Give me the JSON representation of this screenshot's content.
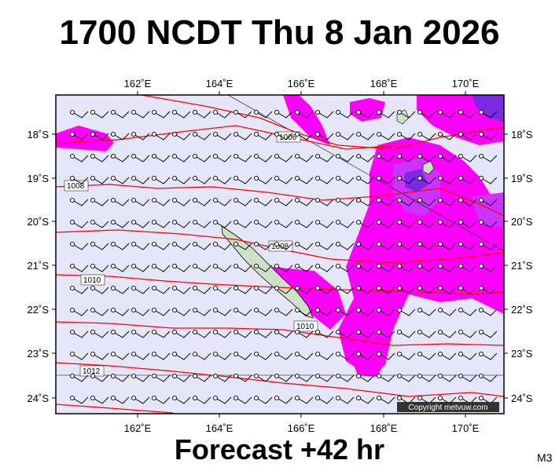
{
  "title": "1700 NCDT Thu 8 Jan 2026",
  "forecast": "Forecast +42 hr",
  "map_code": "M3",
  "copyright": "Copyright metvuw.com",
  "lon_labels": [
    "162˚E",
    "164˚E",
    "166˚E",
    "168˚E",
    "170˚E"
  ],
  "lat_labels": [
    "18˚S",
    "19˚S",
    "20˚S",
    "21˚S",
    "22˚S",
    "23˚S",
    "24˚S"
  ],
  "isobar_labels": [
    "1006",
    "1008",
    "1008",
    "1010",
    "1010",
    "1012"
  ],
  "colors": {
    "background": "#e6e6fa",
    "rain_light": "#ff00ff",
    "rain_medium": "#cc33ff",
    "rain_heavy": "#7a2be2",
    "isobar": "#ff0000",
    "land": "#cfe0c8"
  }
}
